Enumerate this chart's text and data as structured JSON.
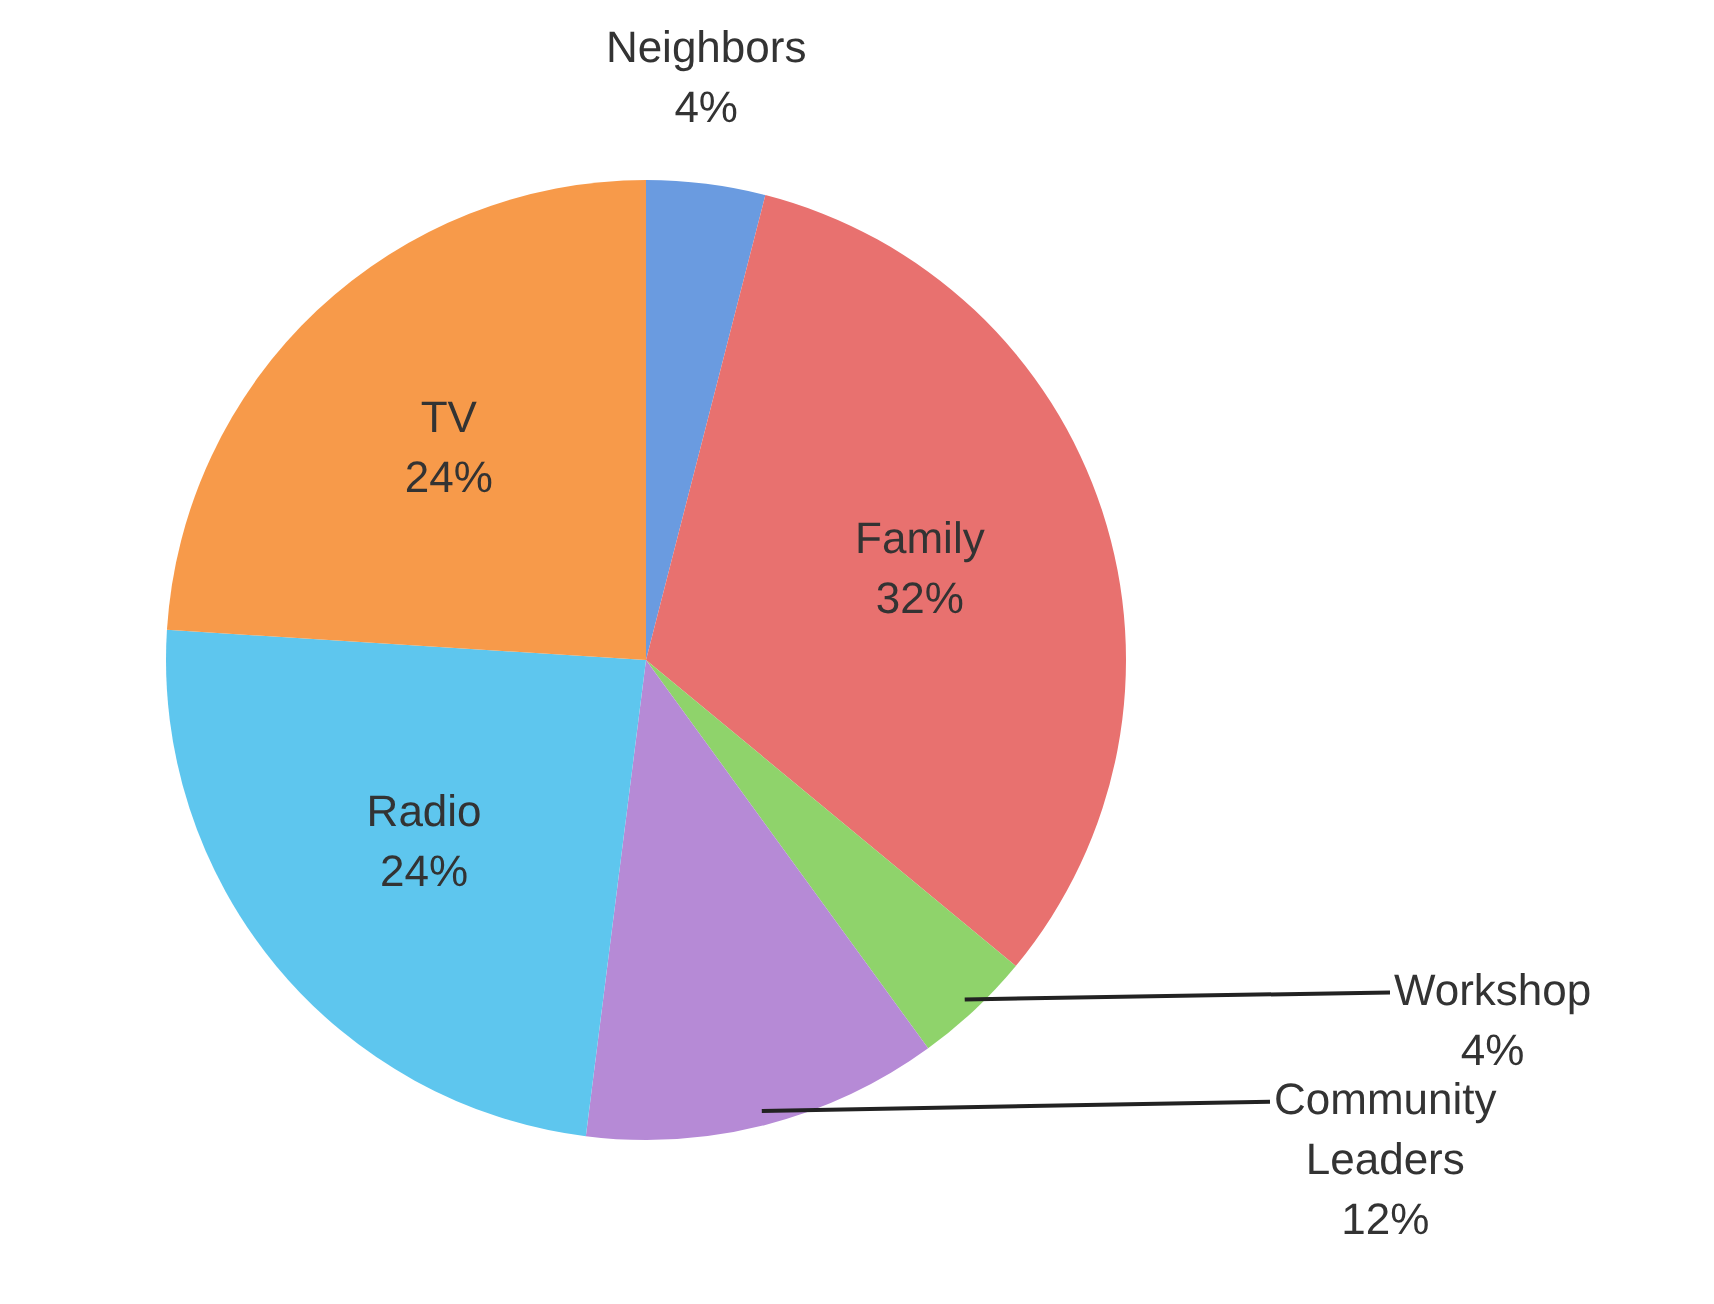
{
  "chart_data": {
    "type": "pie",
    "categories": [
      "Neighbors",
      "Family",
      "Workshop",
      "Community Leaders",
      "Radio",
      "TV"
    ],
    "values": [
      4,
      32,
      4,
      12,
      24,
      24
    ],
    "value_labels": [
      "4%",
      "32%",
      "4%",
      "12%",
      "24%",
      "24%"
    ],
    "colors": [
      "#6a9be0",
      "#e8716f",
      "#8fd36b",
      "#b68ad6",
      "#5ec6ee",
      "#f79a4a"
    ],
    "legend": false
  }
}
